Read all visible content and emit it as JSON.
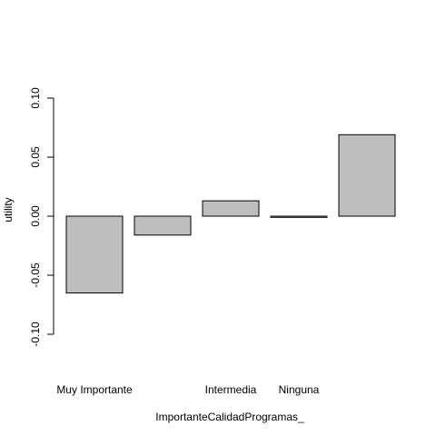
{
  "chart_data": {
    "type": "bar",
    "title": "",
    "xlabel": "ImportanteCalidadProgramas_",
    "ylabel": "utility",
    "categories": [
      "Muy Importante",
      "",
      "Intermedia",
      "Ninguna",
      ""
    ],
    "values": [
      -0.065,
      -0.016,
      0.013,
      -0.001,
      0.069
    ],
    "ylim": [
      -0.1,
      0.1
    ],
    "yticks": [
      -0.1,
      -0.05,
      0.0,
      0.05,
      0.1
    ],
    "ytick_labels": [
      "-0.10",
      "-0.05",
      "0.00",
      "0.05",
      "0.10"
    ],
    "grid": false,
    "legend": "none",
    "bar_fill": "#bebebe",
    "bar_stroke": "#000000"
  }
}
